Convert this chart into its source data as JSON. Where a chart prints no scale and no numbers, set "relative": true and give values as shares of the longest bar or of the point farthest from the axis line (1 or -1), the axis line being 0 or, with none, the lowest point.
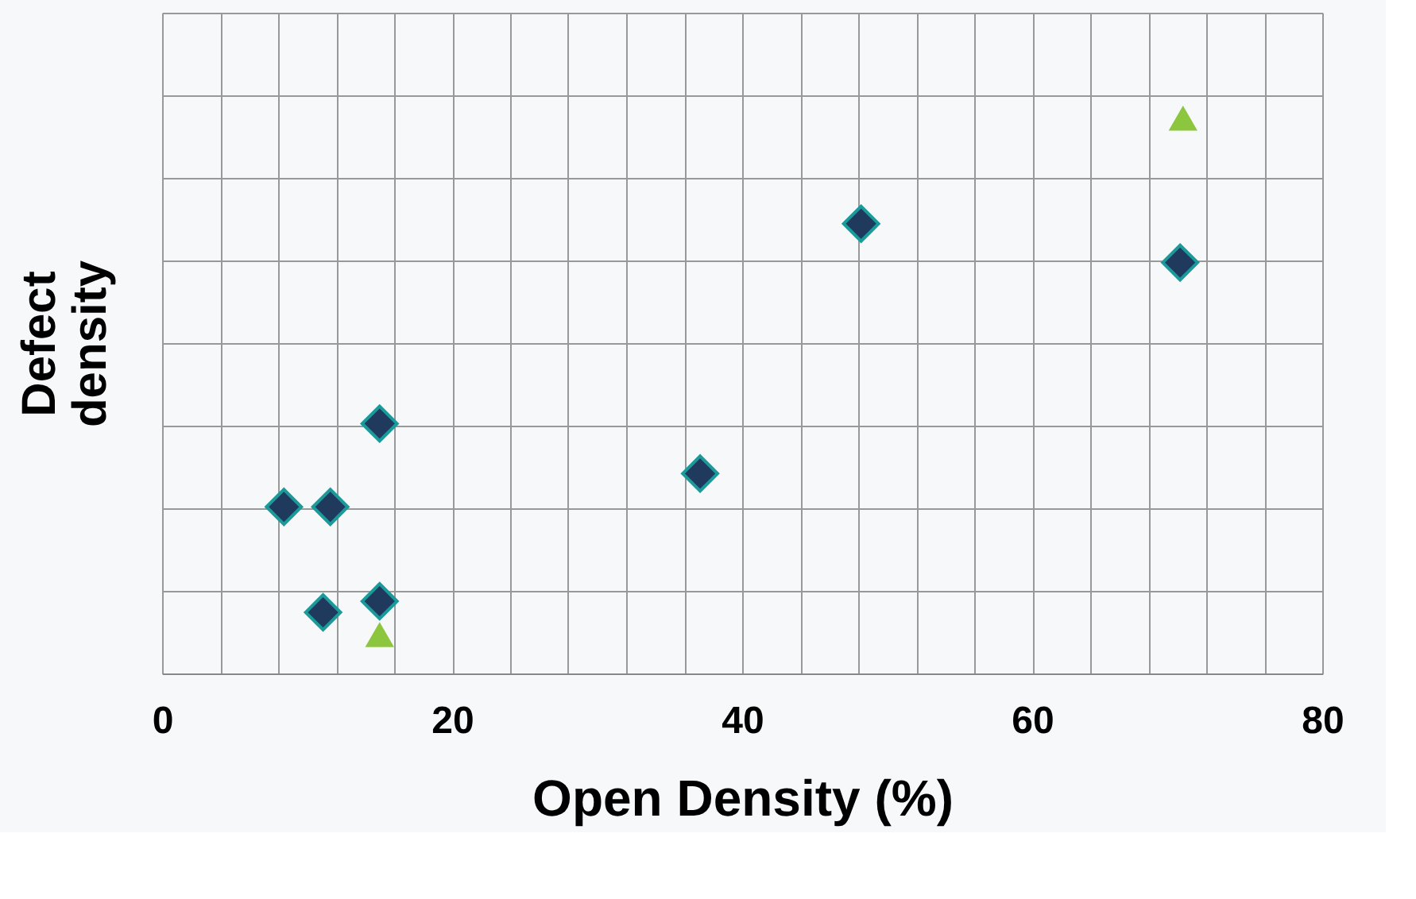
{
  "chart_data": {
    "type": "scatter",
    "xlabel": "Open Density (%)",
    "ylabel": "Defect\ndensity",
    "relative": true,
    "grid": true,
    "tick_labels": "x",
    "xlim": [
      0,
      80
    ],
    "xticks": [
      0,
      {
        "value": 4,
        "label": null
      },
      {
        "value": 8,
        "label": null
      },
      {
        "value": 12,
        "label": null
      },
      {
        "value": 16,
        "label": null
      },
      20,
      {
        "value": 24,
        "label": null
      },
      {
        "value": 28,
        "label": null
      },
      {
        "value": 32,
        "label": null
      },
      {
        "value": 36,
        "label": null
      },
      40,
      {
        "value": 44,
        "label": null
      },
      {
        "value": 48,
        "label": null
      },
      {
        "value": 52,
        "label": null
      },
      {
        "value": 56,
        "label": null
      },
      60,
      {
        "value": 64,
        "label": null
      },
      {
        "value": 68,
        "label": null
      },
      {
        "value": 72,
        "label": null
      },
      {
        "value": 76,
        "label": null
      },
      80
    ],
    "series": [
      {
        "color": "#1f3a5c",
        "marker": "diamond",
        "x": [
          48.2,
          70.2,
          15.0,
          37.1,
          8.4,
          11.6,
          15.0,
          11.1
        ],
        "values": [
          0.81,
          0.74,
          0.45,
          0.36,
          0.3,
          0.3,
          0.13,
          0.11
        ]
      },
      {
        "color": "#8cc63f",
        "marker": "triangle",
        "x": [
          70.4,
          15.0
        ],
        "values": [
          1.0,
          0.07
        ]
      }
    ]
  }
}
